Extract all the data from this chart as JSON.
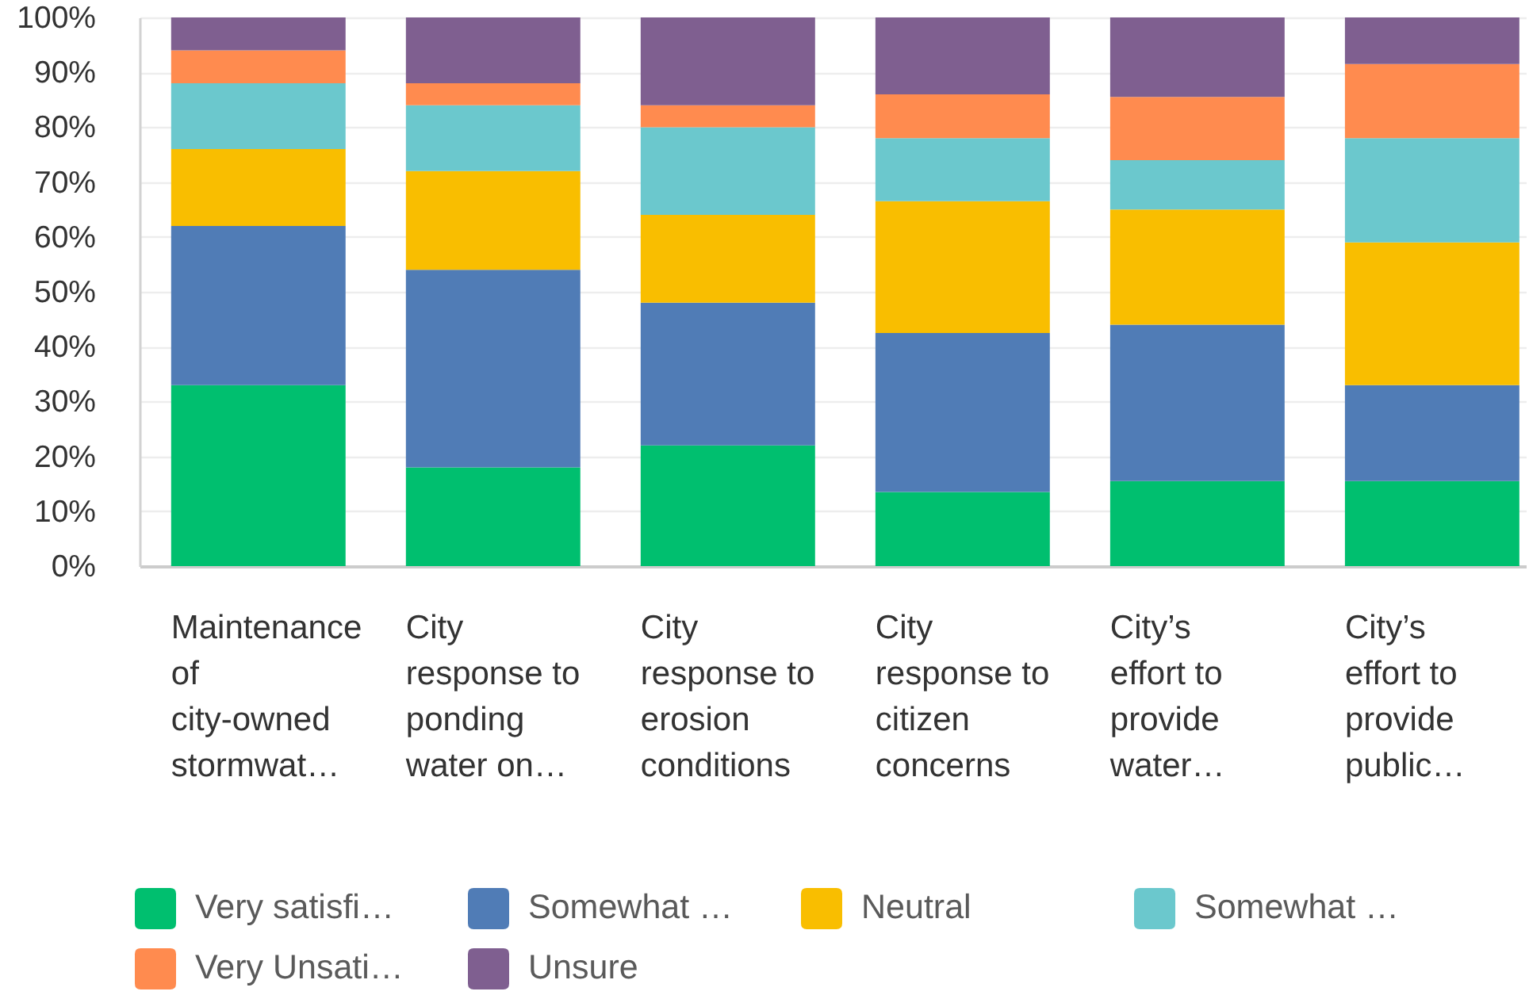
{
  "chart_data": {
    "type": "bar",
    "stacked": true,
    "categories": [
      "Maintenance of city-owned stormwat…",
      "City response to ponding water on…",
      "City response to erosion conditions",
      "City response to citizen concerns",
      "City’s effort to provide water…",
      "City’s effort to provide public…"
    ],
    "series": [
      {
        "name": "Very satisfi…",
        "color": "#00bf6f",
        "values": [
          33,
          18,
          22,
          13.5,
          15.5,
          15.5
        ]
      },
      {
        "name": "Somewhat …",
        "color": "#507cb6",
        "values": [
          29,
          36,
          26,
          29,
          28.5,
          17.5
        ]
      },
      {
        "name": "Neutral",
        "color": "#f9be00",
        "values": [
          14,
          18,
          16,
          24,
          21,
          26
        ]
      },
      {
        "name": "Somewhat …",
        "color": "#6bc8cd",
        "values": [
          12,
          12,
          16,
          11.5,
          9,
          19
        ]
      },
      {
        "name": "Very Unsati…",
        "color": "#ff8b4f",
        "values": [
          6,
          4,
          4,
          8,
          11.5,
          13.5
        ]
      },
      {
        "name": "Unsure",
        "color": "#7f5f90",
        "values": [
          6,
          12,
          16,
          14,
          14.5,
          8.5
        ]
      }
    ],
    "ylim": [
      0,
      100
    ],
    "yticks": [
      {
        "value": 0,
        "label": "0%"
      },
      {
        "value": 10,
        "label": "10%"
      },
      {
        "value": 20,
        "label": "20%"
      },
      {
        "value": 30,
        "label": "30%"
      },
      {
        "value": 40,
        "label": "40%"
      },
      {
        "value": 50,
        "label": "50%"
      },
      {
        "value": 60,
        "label": "60%"
      },
      {
        "value": 70,
        "label": "70%"
      },
      {
        "value": 80,
        "label": "80%"
      },
      {
        "value": 90,
        "label": "90%"
      },
      {
        "value": 100,
        "label": "100%"
      }
    ],
    "grid": "y",
    "legend": "bottom"
  }
}
